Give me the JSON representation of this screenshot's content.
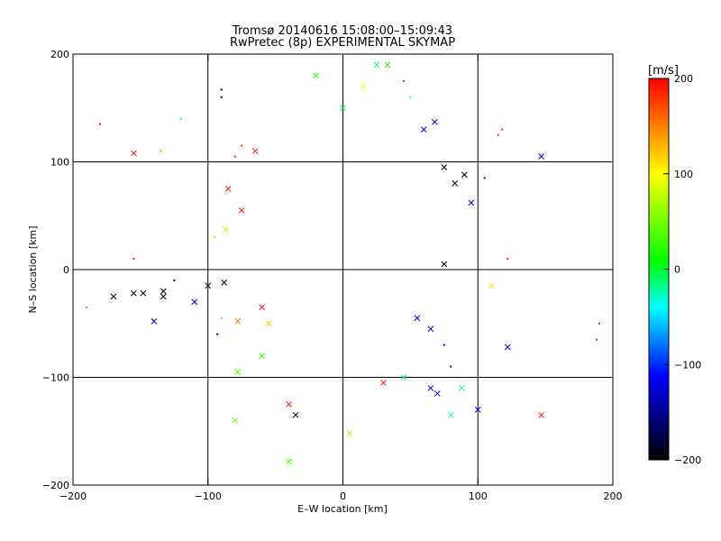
{
  "chart_data": {
    "type": "scatter",
    "title": "Tromsø 20140616 15:08:00–15:09:43",
    "subtitle": "RwPretec (8p) EXPERIMENTAL SKYMAP",
    "xlabel": "E–W location [km]",
    "ylabel": "N–S location [km]",
    "xlim": [
      -200,
      200
    ],
    "ylim": [
      -200,
      200
    ],
    "xticks": [
      -200,
      -100,
      0,
      100,
      200
    ],
    "yticks": [
      -200,
      -100,
      0,
      100,
      200
    ],
    "grid": true,
    "colorbar": {
      "label": "[m/s]",
      "range": [
        -200,
        200
      ],
      "ticks": [
        200,
        100,
        0,
        -100,
        -200
      ],
      "colormap": [
        "#000000",
        "#0000ff",
        "#00ffff",
        "#00ff00",
        "#ffff00",
        "#ff0000"
      ]
    },
    "markers": [
      "x",
      "dot"
    ],
    "points": [
      {
        "x": -180,
        "y": 135,
        "v": 190,
        "m": "dot"
      },
      {
        "x": -155,
        "y": 108,
        "v": 190,
        "m": "x"
      },
      {
        "x": -155,
        "y": 10,
        "v": 190,
        "m": "dot"
      },
      {
        "x": -135,
        "y": 110,
        "v": 20,
        "m": "dot"
      },
      {
        "x": -120,
        "y": 140,
        "v": -20,
        "m": "dot"
      },
      {
        "x": -170,
        "y": -25,
        "v": -200,
        "m": "x"
      },
      {
        "x": -155,
        "y": -22,
        "v": -200,
        "m": "x"
      },
      {
        "x": -148,
        "y": -22,
        "v": -200,
        "m": "x"
      },
      {
        "x": -140,
        "y": -48,
        "v": -130,
        "m": "x"
      },
      {
        "x": -133,
        "y": -25,
        "v": -200,
        "m": "x"
      },
      {
        "x": -133,
        "y": -20,
        "v": -200,
        "m": "x"
      },
      {
        "x": -125,
        "y": -10,
        "v": -200,
        "m": "dot"
      },
      {
        "x": -110,
        "y": -30,
        "v": -120,
        "m": "x"
      },
      {
        "x": -100,
        "y": -15,
        "v": -200,
        "m": "x"
      },
      {
        "x": -190,
        "y": -35,
        "v": 20,
        "m": "dot"
      },
      {
        "x": -90,
        "y": 167,
        "v": -200,
        "m": "dot"
      },
      {
        "x": -90,
        "y": 160,
        "v": -200,
        "m": "dot"
      },
      {
        "x": -80,
        "y": 105,
        "v": 190,
        "m": "dot"
      },
      {
        "x": -65,
        "y": 110,
        "v": 190,
        "m": "x"
      },
      {
        "x": -75,
        "y": 115,
        "v": 190,
        "m": "dot"
      },
      {
        "x": -85,
        "y": 75,
        "v": 190,
        "m": "x"
      },
      {
        "x": -75,
        "y": 55,
        "v": 190,
        "m": "x"
      },
      {
        "x": -87,
        "y": 37,
        "v": 80,
        "m": "x"
      },
      {
        "x": -95,
        "y": 30,
        "v": 40,
        "m": "dot"
      },
      {
        "x": -88,
        "y": -12,
        "v": -200,
        "m": "x"
      },
      {
        "x": -90,
        "y": -45,
        "v": 40,
        "m": "dot"
      },
      {
        "x": -78,
        "y": -48,
        "v": 150,
        "m": "x"
      },
      {
        "x": -93,
        "y": -60,
        "v": -150,
        "m": "dot"
      },
      {
        "x": -78,
        "y": -95,
        "v": 40,
        "m": "x"
      },
      {
        "x": -80,
        "y": -140,
        "v": 40,
        "m": "x"
      },
      {
        "x": -60,
        "y": -35,
        "v": 190,
        "m": "x"
      },
      {
        "x": -55,
        "y": -50,
        "v": 120,
        "m": "x"
      },
      {
        "x": -60,
        "y": -80,
        "v": 30,
        "m": "x"
      },
      {
        "x": -40,
        "y": -125,
        "v": 190,
        "m": "x"
      },
      {
        "x": -35,
        "y": -135,
        "v": -200,
        "m": "x"
      },
      {
        "x": -40,
        "y": -178,
        "v": 30,
        "m": "x"
      },
      {
        "x": 5,
        "y": -152,
        "v": 70,
        "m": "x"
      },
      {
        "x": -20,
        "y": 180,
        "v": 20,
        "m": "x"
      },
      {
        "x": 0,
        "y": 150,
        "v": -10,
        "m": "x"
      },
      {
        "x": 15,
        "y": 170,
        "v": 100,
        "m": "x"
      },
      {
        "x": 25,
        "y": 190,
        "v": -10,
        "m": "x"
      },
      {
        "x": 33,
        "y": 190,
        "v": 20,
        "m": "x"
      },
      {
        "x": 45,
        "y": 175,
        "v": 190,
        "m": "dot"
      },
      {
        "x": 50,
        "y": 160,
        "v": -30,
        "m": "dot"
      },
      {
        "x": 60,
        "y": 130,
        "v": -110,
        "m": "x"
      },
      {
        "x": 68,
        "y": 137,
        "v": -130,
        "m": "x"
      },
      {
        "x": 75,
        "y": 95,
        "v": -200,
        "m": "x"
      },
      {
        "x": 83,
        "y": 80,
        "v": -200,
        "m": "x"
      },
      {
        "x": 90,
        "y": 88,
        "v": -200,
        "m": "x"
      },
      {
        "x": 95,
        "y": 62,
        "v": -130,
        "m": "x"
      },
      {
        "x": 105,
        "y": 85,
        "v": -130,
        "m": "dot"
      },
      {
        "x": 118,
        "y": 130,
        "v": 190,
        "m": "dot"
      },
      {
        "x": 115,
        "y": 125,
        "v": 190,
        "m": "dot"
      },
      {
        "x": 147,
        "y": 105,
        "v": -130,
        "m": "x"
      },
      {
        "x": 122,
        "y": 10,
        "v": 190,
        "m": "dot"
      },
      {
        "x": 105,
        "y": 0,
        "v": 20,
        "m": "dot"
      },
      {
        "x": 110,
        "y": -15,
        "v": 110,
        "m": "x"
      },
      {
        "x": 122,
        "y": -72,
        "v": -120,
        "m": "x"
      },
      {
        "x": 100,
        "y": -130,
        "v": -130,
        "m": "x"
      },
      {
        "x": 147,
        "y": -135,
        "v": 190,
        "m": "x"
      },
      {
        "x": 190,
        "y": -50,
        "v": 190,
        "m": "dot"
      },
      {
        "x": 188,
        "y": -65,
        "v": 190,
        "m": "dot"
      },
      {
        "x": 75,
        "y": 5,
        "v": -200,
        "m": "x"
      },
      {
        "x": 55,
        "y": -45,
        "v": -130,
        "m": "x"
      },
      {
        "x": 65,
        "y": -55,
        "v": -130,
        "m": "x"
      },
      {
        "x": 75,
        "y": -70,
        "v": -120,
        "m": "dot"
      },
      {
        "x": 80,
        "y": -90,
        "v": -130,
        "m": "dot"
      },
      {
        "x": 70,
        "y": -115,
        "v": -130,
        "m": "x"
      },
      {
        "x": 65,
        "y": -110,
        "v": -130,
        "m": "x"
      },
      {
        "x": 80,
        "y": -135,
        "v": -30,
        "m": "x"
      },
      {
        "x": 88,
        "y": -110,
        "v": -20,
        "m": "x"
      },
      {
        "x": 45,
        "y": -100,
        "v": -20,
        "m": "x"
      },
      {
        "x": 30,
        "y": -105,
        "v": 190,
        "m": "x"
      }
    ]
  }
}
